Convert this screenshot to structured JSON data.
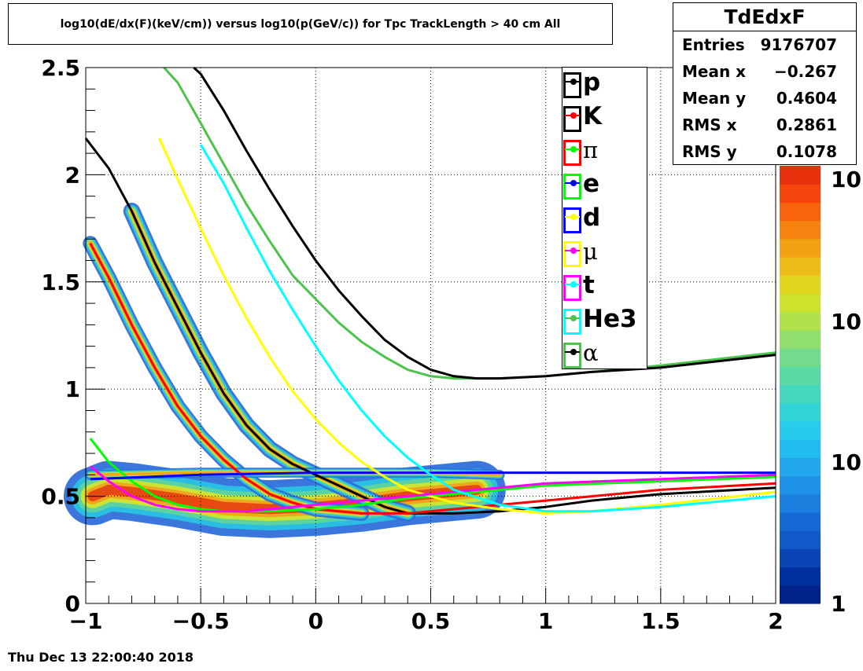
{
  "title": "log10(dE/dx(F)(keV/cm)) versus log10(p(GeV/c)) for Tpc TrackLength > 40 cm All",
  "stats": {
    "name": "TdEdxF",
    "rows": [
      {
        "label": "Entries",
        "value": "9176707"
      },
      {
        "label": "Mean x",
        "value": "−0.267"
      },
      {
        "label": "Mean y",
        "value": "0.4604"
      },
      {
        "label": "RMS x",
        "value": "0.2861"
      },
      {
        "label": "RMS y",
        "value": "0.1078"
      }
    ]
  },
  "timestamp": "Thu Dec 13 22:00:40 2018",
  "colors": {
    "p": "#000000",
    "K": "#ff0000",
    "pi": "#00ff00",
    "e": "#0000ff",
    "d": "#ffff00",
    "mu": "#ff00ff",
    "t": "#00ffff",
    "He3": "#4cc34c",
    "alpha": "#000000"
  },
  "chart_data": {
    "type": "heatmap",
    "title": "log10(dE/dx(F)(keV/cm)) versus log10(p(GeV/c)) for Tpc TrackLength > 40 cm All",
    "xlim": [
      -1,
      2
    ],
    "ylim": [
      0,
      2.5
    ],
    "grid": true,
    "x_ticks": [
      "−1",
      "−0.5",
      "0",
      "0.5",
      "1",
      "1.5",
      "2"
    ],
    "y_ticks": [
      "0",
      "0.5",
      "1",
      "1.5",
      "2",
      "2.5"
    ],
    "z_scale": "log",
    "z_tick_labels": [
      "1",
      "10",
      "10",
      "10"
    ],
    "legend": {
      "position": "top-right-inside",
      "entries": [
        "p",
        "K",
        "π",
        "e",
        "d",
        "μ",
        "t",
        "He3",
        "α"
      ]
    },
    "series": [
      {
        "name": "p",
        "color": "#000000",
        "points": [
          [
            -1,
            2.17
          ],
          [
            -0.9,
            2.03
          ],
          [
            -0.8,
            1.83
          ],
          [
            -0.7,
            1.59
          ],
          [
            -0.6,
            1.38
          ],
          [
            -0.5,
            1.17
          ],
          [
            -0.4,
            0.98
          ],
          [
            -0.3,
            0.83
          ],
          [
            -0.2,
            0.72
          ],
          [
            -0.1,
            0.65
          ],
          [
            0,
            0.6
          ],
          [
            0.1,
            0.55
          ],
          [
            0.2,
            0.5
          ],
          [
            0.3,
            0.45
          ],
          [
            0.4,
            0.42
          ],
          [
            0.6,
            0.42
          ],
          [
            0.8,
            0.43
          ],
          [
            1.0,
            0.45
          ],
          [
            1.2,
            0.48
          ],
          [
            1.5,
            0.51
          ],
          [
            2.0,
            0.54
          ]
        ]
      },
      {
        "name": "K",
        "color": "#ff0000",
        "points": [
          [
            -0.98,
            1.68
          ],
          [
            -0.9,
            1.52
          ],
          [
            -0.8,
            1.3
          ],
          [
            -0.7,
            1.1
          ],
          [
            -0.6,
            0.92
          ],
          [
            -0.5,
            0.78
          ],
          [
            -0.4,
            0.67
          ],
          [
            -0.3,
            0.58
          ],
          [
            -0.2,
            0.51
          ],
          [
            -0.1,
            0.47
          ],
          [
            0,
            0.44
          ],
          [
            0.2,
            0.42
          ],
          [
            0.4,
            0.42
          ],
          [
            0.6,
            0.44
          ],
          [
            0.8,
            0.46
          ],
          [
            1.0,
            0.48
          ],
          [
            1.5,
            0.53
          ],
          [
            2.0,
            0.56
          ]
        ]
      },
      {
        "name": "π",
        "color": "#00ff00",
        "points": [
          [
            -0.98,
            0.77
          ],
          [
            -0.9,
            0.66
          ],
          [
            -0.8,
            0.57
          ],
          [
            -0.7,
            0.5
          ],
          [
            -0.6,
            0.46
          ],
          [
            -0.5,
            0.44
          ],
          [
            -0.4,
            0.43
          ],
          [
            -0.3,
            0.43
          ],
          [
            -0.2,
            0.43
          ],
          [
            0,
            0.44
          ],
          [
            0.2,
            0.46
          ],
          [
            0.4,
            0.49
          ],
          [
            0.6,
            0.51
          ],
          [
            0.8,
            0.53
          ],
          [
            1.0,
            0.55
          ],
          [
            1.5,
            0.57
          ],
          [
            2.0,
            0.59
          ]
        ]
      },
      {
        "name": "e",
        "color": "#0000ff",
        "points": [
          [
            -0.98,
            0.58
          ],
          [
            -0.5,
            0.6
          ],
          [
            0,
            0.61
          ],
          [
            0.5,
            0.61
          ],
          [
            1.0,
            0.61
          ],
          [
            2.0,
            0.61
          ]
        ]
      },
      {
        "name": "d",
        "color": "#ffff00",
        "points": [
          [
            -0.68,
            2.17
          ],
          [
            -0.6,
            1.98
          ],
          [
            -0.5,
            1.75
          ],
          [
            -0.4,
            1.53
          ],
          [
            -0.3,
            1.33
          ],
          [
            -0.2,
            1.15
          ],
          [
            -0.1,
            0.99
          ],
          [
            0,
            0.86
          ],
          [
            0.1,
            0.75
          ],
          [
            0.2,
            0.66
          ],
          [
            0.3,
            0.59
          ],
          [
            0.4,
            0.53
          ],
          [
            0.6,
            0.47
          ],
          [
            0.8,
            0.44
          ],
          [
            1.0,
            0.42
          ],
          [
            1.2,
            0.43
          ],
          [
            1.5,
            0.46
          ],
          [
            2.0,
            0.52
          ]
        ]
      },
      {
        "name": "μ",
        "color": "#ff00ff",
        "points": [
          [
            -0.98,
            0.64
          ],
          [
            -0.9,
            0.57
          ],
          [
            -0.8,
            0.5
          ],
          [
            -0.7,
            0.46
          ],
          [
            -0.6,
            0.44
          ],
          [
            -0.5,
            0.43
          ],
          [
            -0.4,
            0.43
          ],
          [
            -0.3,
            0.43
          ],
          [
            -0.2,
            0.44
          ],
          [
            0,
            0.46
          ],
          [
            0.2,
            0.48
          ],
          [
            0.4,
            0.5
          ],
          [
            0.6,
            0.52
          ],
          [
            0.8,
            0.54
          ],
          [
            1.0,
            0.56
          ],
          [
            1.5,
            0.58
          ],
          [
            2.0,
            0.6
          ]
        ]
      },
      {
        "name": "t",
        "color": "#00ffff",
        "points": [
          [
            -0.5,
            2.14
          ],
          [
            -0.4,
            1.96
          ],
          [
            -0.3,
            1.75
          ],
          [
            -0.2,
            1.55
          ],
          [
            -0.1,
            1.37
          ],
          [
            0,
            1.2
          ],
          [
            0.1,
            1.04
          ],
          [
            0.2,
            0.9
          ],
          [
            0.3,
            0.78
          ],
          [
            0.4,
            0.68
          ],
          [
            0.5,
            0.6
          ],
          [
            0.6,
            0.53
          ],
          [
            0.8,
            0.46
          ],
          [
            1.0,
            0.43
          ],
          [
            1.2,
            0.43
          ],
          [
            1.5,
            0.45
          ],
          [
            2.0,
            0.5
          ]
        ]
      },
      {
        "name": "He3",
        "color": "#4cc34c",
        "points": [
          [
            -0.66,
            2.5
          ],
          [
            -0.6,
            2.43
          ],
          [
            -0.5,
            2.24
          ],
          [
            -0.4,
            2.05
          ],
          [
            -0.3,
            1.86
          ],
          [
            -0.2,
            1.69
          ],
          [
            -0.1,
            1.53
          ],
          [
            0,
            1.42
          ],
          [
            0.1,
            1.31
          ],
          [
            0.2,
            1.22
          ],
          [
            0.3,
            1.15
          ],
          [
            0.4,
            1.09
          ],
          [
            0.5,
            1.06
          ],
          [
            0.6,
            1.05
          ],
          [
            0.8,
            1.05
          ],
          [
            1.0,
            1.06
          ],
          [
            1.2,
            1.08
          ],
          [
            1.5,
            1.11
          ],
          [
            2.0,
            1.17
          ]
        ]
      },
      {
        "name": "α",
        "color": "#000000",
        "points": [
          [
            -0.53,
            2.5
          ],
          [
            -0.5,
            2.47
          ],
          [
            -0.4,
            2.3
          ],
          [
            -0.3,
            2.11
          ],
          [
            -0.2,
            1.93
          ],
          [
            -0.1,
            1.76
          ],
          [
            0,
            1.6
          ],
          [
            0.1,
            1.46
          ],
          [
            0.2,
            1.34
          ],
          [
            0.3,
            1.23
          ],
          [
            0.4,
            1.15
          ],
          [
            0.5,
            1.09
          ],
          [
            0.6,
            1.06
          ],
          [
            0.7,
            1.05
          ],
          [
            0.8,
            1.05
          ],
          [
            1.0,
            1.06
          ],
          [
            1.2,
            1.08
          ],
          [
            1.5,
            1.1
          ],
          [
            2.0,
            1.16
          ]
        ]
      }
    ]
  }
}
